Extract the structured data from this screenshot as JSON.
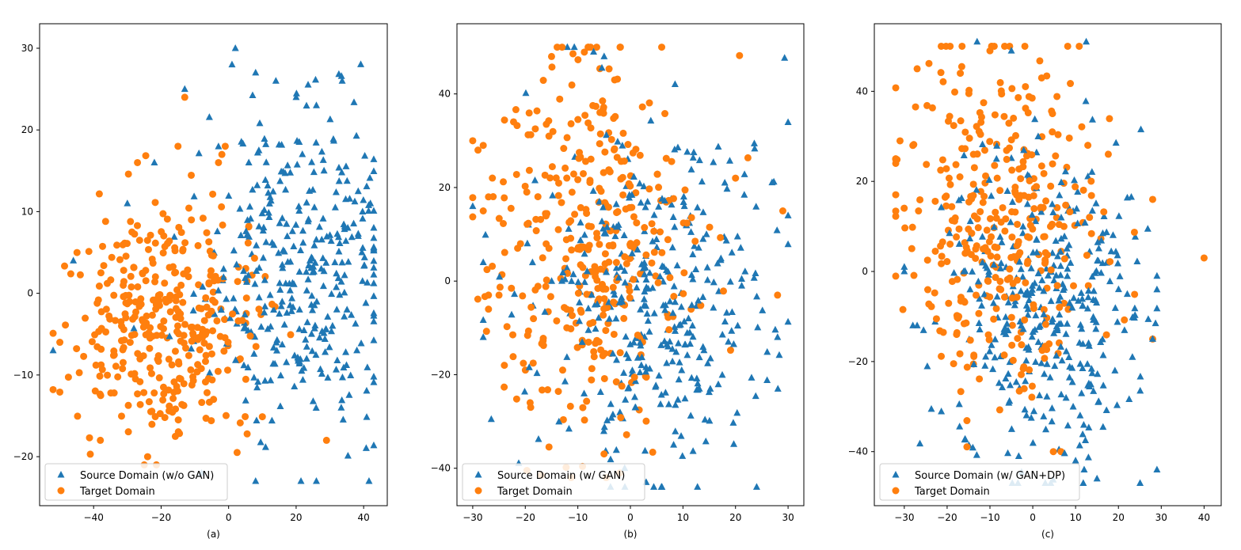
{
  "colors": {
    "source": "#1f77b4",
    "target": "#ff7f0e"
  },
  "chart_data": [
    {
      "type": "scatter",
      "panel_label": "(a)",
      "xlim": [
        -56,
        47
      ],
      "ylim": [
        -26,
        33
      ],
      "xticks": [
        -40,
        -20,
        0,
        20,
        40
      ],
      "yticks": [
        -20,
        -10,
        0,
        10,
        20,
        30
      ],
      "legend": {
        "position": "lower-left",
        "entries": [
          "Source Domain (w/o GAN)",
          "Target Domain"
        ]
      },
      "series": [
        {
          "name": "Source Domain (w/o GAN)",
          "marker": "triangle",
          "cluster": {
            "cx": 22,
            "cy": 2,
            "sx": 15,
            "sy": 10,
            "n": 360,
            "xr": [
              -52,
              43
            ],
            "yr": [
              -23,
              30
            ]
          },
          "x": [
            2,
            1,
            8,
            -13,
            20,
            26,
            -52,
            -46,
            26,
            8,
            -8,
            42,
            43,
            38,
            -30,
            -22,
            14
          ],
          "y": [
            30,
            28,
            27,
            25,
            24,
            23,
            -7,
            4,
            -23,
            -23,
            -22,
            11,
            8,
            -7,
            11,
            16,
            26
          ]
        },
        {
          "name": "Target Domain",
          "marker": "circle",
          "cluster": {
            "cx": -18,
            "cy": -3,
            "sx": 14,
            "sy": 7,
            "n": 360,
            "xr": [
              -52,
              34
            ],
            "yr": [
              -21,
              25
            ]
          },
          "x": [
            -13,
            -15,
            -3,
            -1,
            -27,
            29,
            -50,
            -38,
            -25,
            -24,
            -2
          ],
          "y": [
            24,
            18,
            16,
            18,
            16,
            -18,
            -6,
            -18,
            -21,
            -20,
            17
          ]
        }
      ]
    },
    {
      "type": "scatter",
      "panel_label": "(b)",
      "xlim": [
        -33,
        33
      ],
      "ylim": [
        -48,
        55
      ],
      "xticks": [
        -30,
        -20,
        -10,
        0,
        10,
        20,
        30
      ],
      "yticks": [
        -40,
        -20,
        0,
        20,
        40
      ],
      "legend": {
        "position": "lower-left",
        "entries": [
          "Source Domain (w/ GAN)",
          "Target Domain"
        ]
      },
      "series": [
        {
          "name": "Source Domain (w/ GAN)",
          "marker": "triangle",
          "cluster": {
            "cx": 5,
            "cy": -5,
            "sx": 11,
            "sy": 18,
            "n": 360,
            "xr": [
              -28,
              30
            ],
            "yr": [
              -44,
              50
            ]
          },
          "x": [
            -12,
            -7,
            -5,
            30,
            28,
            -28,
            -28,
            -30,
            6,
            3
          ],
          "y": [
            50,
            49,
            48,
            14,
            -12,
            4,
            -12,
            16,
            -44,
            -43
          ]
        },
        {
          "name": "Target Domain",
          "marker": "circle",
          "cluster": {
            "cx": -7,
            "cy": 8,
            "sx": 10,
            "sy": 20,
            "n": 360,
            "xr": [
              -30,
              30
            ],
            "yr": [
              -42,
              50
            ]
          },
          "x": [
            -30,
            -28,
            -29,
            -27,
            -28,
            -27,
            -15,
            -13,
            -8,
            -3,
            20,
            29,
            -27,
            -25,
            28,
            -2
          ],
          "y": [
            30,
            29,
            28,
            18,
            15,
            -3,
            48,
            50,
            50,
            43,
            22,
            15,
            -6,
            -3,
            -3,
            -41
          ]
        }
      ]
    },
    {
      "type": "scatter",
      "panel_label": "(c)",
      "xlim": [
        -37,
        44
      ],
      "ylim": [
        -52,
        55
      ],
      "xticks": [
        -30,
        -20,
        -10,
        0,
        10,
        20,
        30,
        40
      ],
      "yticks": [
        -40,
        -20,
        0,
        20,
        40
      ],
      "legend": {
        "position": "lower-left",
        "entries": [
          "Source Domain (w/ GAN+DP)",
          "Target Domain"
        ]
      },
      "series": [
        {
          "name": "Source Domain (w/ GAN+DP)",
          "marker": "triangle",
          "cluster": {
            "cx": 3,
            "cy": -8,
            "sx": 11,
            "sy": 18,
            "n": 360,
            "xr": [
              -31,
              29
            ],
            "yr": [
              -47,
              51
            ]
          },
          "x": [
            -13,
            -5,
            -30,
            -30,
            -28,
            -27,
            29,
            28,
            10,
            12,
            15
          ],
          "y": [
            51,
            49,
            1,
            0,
            -12,
            -12,
            -1,
            -15,
            -42,
            -44,
            -46
          ]
        },
        {
          "name": "Target Domain",
          "marker": "circle",
          "cluster": {
            "cx": -7,
            "cy": 10,
            "sx": 11,
            "sy": 20,
            "n": 360,
            "xr": [
              -32,
              28
            ],
            "yr": [
              -40,
              50
            ]
          },
          "x": [
            40,
            -32,
            -32,
            -31,
            -27,
            -10,
            -9,
            28,
            28
          ],
          "y": [
            3,
            24,
            25,
            29,
            45,
            49,
            50,
            16,
            -15
          ]
        }
      ]
    }
  ]
}
